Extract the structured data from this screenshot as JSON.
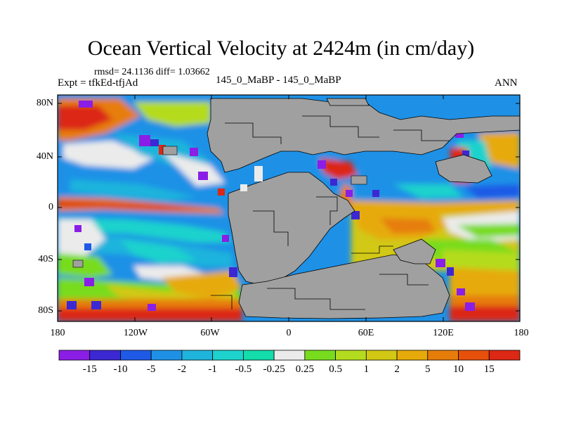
{
  "title": "Ocean Vertical Velocity at 2424m (in cm/day)",
  "stats": "rmsd= 24.1136 diff= 1.03662",
  "expt": "Expt = tfkEd-tfjAd",
  "case": "145_0_MaBP - 145_0_MaBP",
  "season": "ANN",
  "lat_labels": [
    "80N",
    "40N",
    "0",
    "40S",
    "80S"
  ],
  "lon_labels": [
    "180",
    "120W",
    "60W",
    "0",
    "60E",
    "120E",
    "180"
  ],
  "colorbar": {
    "labels": [
      "-15",
      "-10",
      "-5",
      "-2",
      "-1",
      "-0.5",
      "-0.25",
      "0.25",
      "0.5",
      "1",
      "2",
      "5",
      "10",
      "15"
    ],
    "colors": [
      "#8b1ee6",
      "#3c28d2",
      "#1e5ae6",
      "#1e91e6",
      "#1eb4dc",
      "#1ed2cd",
      "#14dcaa",
      "#ebebeb",
      "#78dc1e",
      "#b4dc1e",
      "#d2c814",
      "#e6aa0a",
      "#e67d0a",
      "#e6500a",
      "#dc2814"
    ]
  },
  "map": {
    "land_color": "#a0a0a0"
  }
}
